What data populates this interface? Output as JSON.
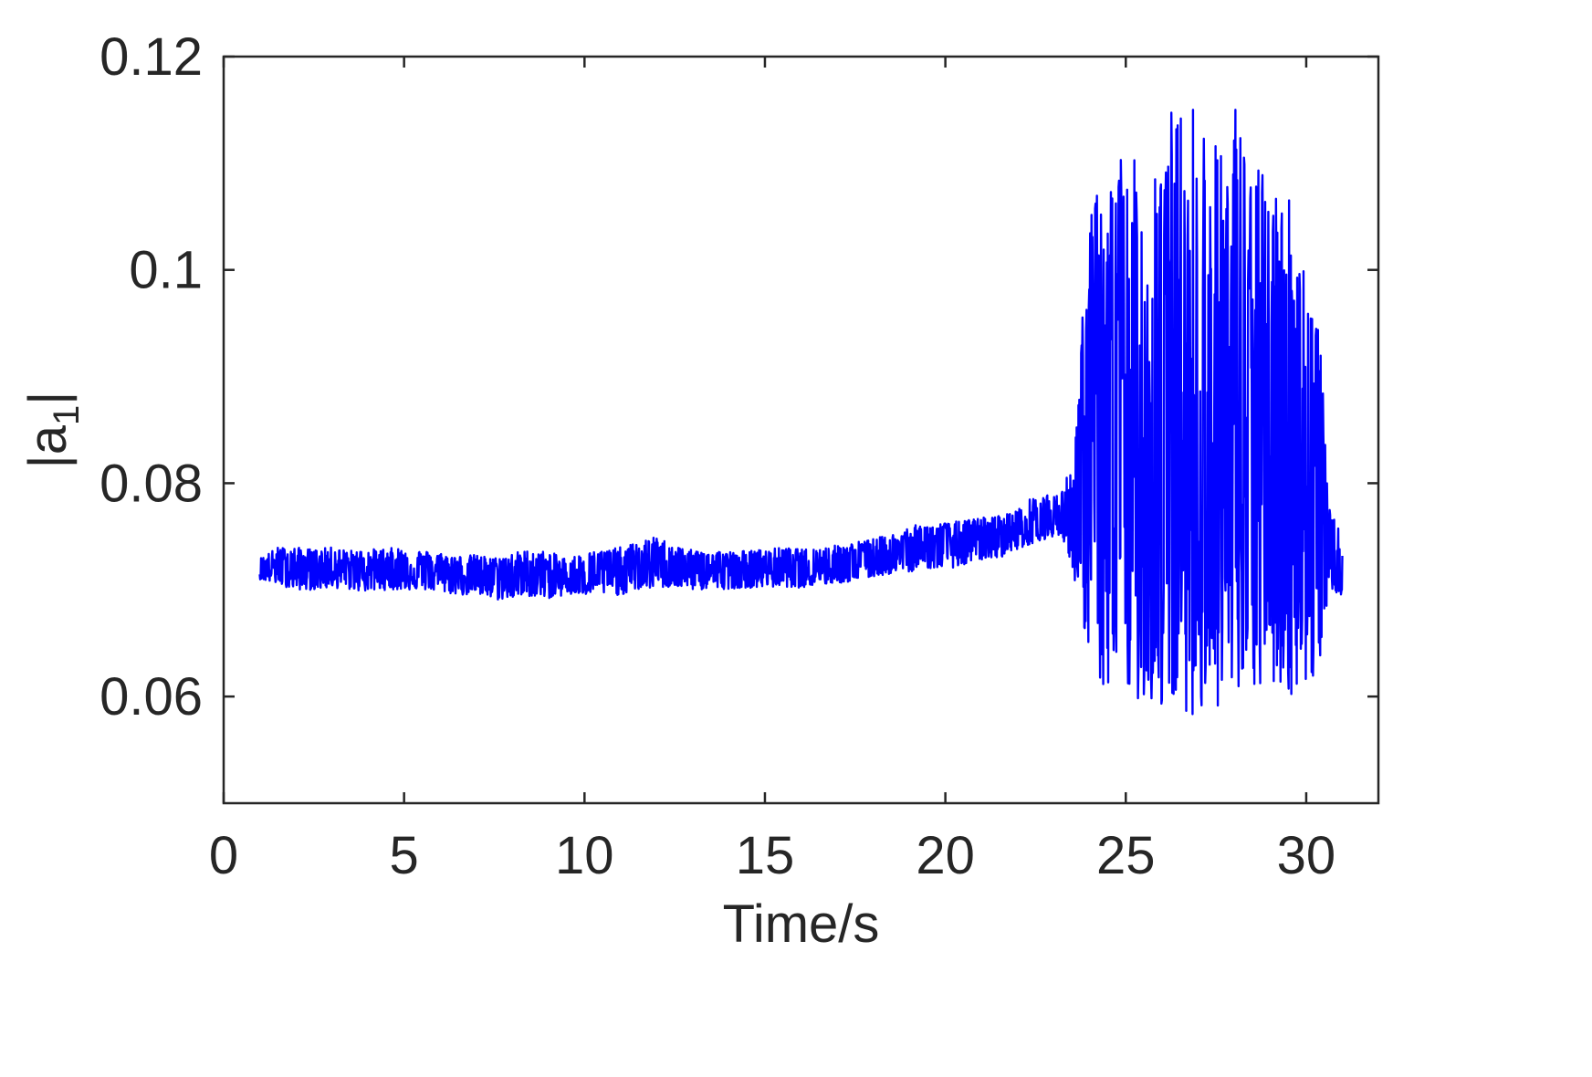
{
  "chart_data": {
    "type": "line",
    "xlabel": "Time/s",
    "ylabel_base": "|a",
    "ylabel_subscript": "1",
    "ylabel_close": "|",
    "xlim": [
      0,
      32
    ],
    "ylim": [
      0.05,
      0.12
    ],
    "xticks": [
      0,
      5,
      10,
      15,
      20,
      25,
      30
    ],
    "xtick_labels": [
      "0",
      "5",
      "10",
      "15",
      "20",
      "25",
      "30"
    ],
    "yticks": [
      0.06,
      0.08,
      0.1,
      0.12
    ],
    "ytick_labels": [
      "0.06",
      "0.08",
      "0.1",
      "0.12"
    ],
    "grid": false,
    "box": true,
    "colors": {
      "line": "#0000ff",
      "axes": "#262626",
      "background": "#ffffff"
    },
    "series": [
      {
        "x": [
          1.0,
          1.5,
          2.0,
          2.5,
          3.0,
          3.5,
          4.0,
          4.5,
          5.0,
          5.5,
          6.0,
          6.5,
          7.0,
          7.5,
          8.0,
          8.5,
          9.0,
          9.5,
          10.0,
          10.5,
          11.0,
          11.5,
          12.0,
          12.5,
          13.0,
          13.5,
          14.0,
          14.5,
          15.0,
          15.5,
          16.0,
          16.5,
          17.0,
          17.5,
          18.0,
          18.5,
          19.0,
          19.5,
          20.0,
          20.5,
          21.0,
          21.5,
          22.0,
          22.5,
          23.0,
          23.3,
          23.6,
          24.0,
          24.5,
          25.0,
          25.5,
          26.0,
          26.5,
          27.0,
          27.5,
          28.0,
          28.5,
          29.0,
          29.5,
          30.0,
          30.4,
          30.6,
          31.0
        ],
        "y": [
          0.0718,
          0.0722,
          0.0721,
          0.0719,
          0.0722,
          0.072,
          0.072,
          0.0721,
          0.0718,
          0.0719,
          0.0717,
          0.0716,
          0.0716,
          0.0714,
          0.0712,
          0.0713,
          0.0712,
          0.071,
          0.0713,
          0.0715,
          0.0716,
          0.072,
          0.0724,
          0.0722,
          0.0719,
          0.072,
          0.0719,
          0.0718,
          0.072,
          0.0721,
          0.072,
          0.0722,
          0.0724,
          0.0726,
          0.073,
          0.0733,
          0.0736,
          0.074,
          0.0742,
          0.0745,
          0.0748,
          0.075,
          0.0756,
          0.076,
          0.0765,
          0.0772,
          0.0778,
          0.08,
          0.0802,
          0.0798,
          0.0803,
          0.08,
          0.0801,
          0.0802,
          0.08,
          0.0801,
          0.08,
          0.0798,
          0.0796,
          0.079,
          0.078,
          0.075,
          0.07
        ],
        "envelope_upper": [
          0.073,
          0.074,
          0.074,
          0.0738,
          0.074,
          0.0737,
          0.0738,
          0.0739,
          0.074,
          0.0737,
          0.0735,
          0.0732,
          0.0733,
          0.073,
          0.0735,
          0.0738,
          0.0736,
          0.073,
          0.0735,
          0.0738,
          0.074,
          0.0745,
          0.075,
          0.0742,
          0.0737,
          0.0738,
          0.0736,
          0.0737,
          0.0738,
          0.074,
          0.0738,
          0.074,
          0.0742,
          0.0745,
          0.0748,
          0.0752,
          0.076,
          0.0762,
          0.0763,
          0.0765,
          0.0768,
          0.077,
          0.0775,
          0.079,
          0.0788,
          0.0795,
          0.085,
          0.1065,
          0.109,
          0.1125,
          0.108,
          0.116,
          0.115,
          0.1165,
          0.112,
          0.117,
          0.11,
          0.109,
          0.108,
          0.101,
          0.094,
          0.078,
          0.075
        ],
        "envelope_lower": [
          0.071,
          0.0705,
          0.07,
          0.07,
          0.0702,
          0.07,
          0.0698,
          0.07,
          0.07,
          0.07,
          0.0698,
          0.0695,
          0.0695,
          0.069,
          0.0692,
          0.0694,
          0.0692,
          0.0695,
          0.0695,
          0.0696,
          0.0695,
          0.07,
          0.0702,
          0.0702,
          0.07,
          0.07,
          0.0701,
          0.0702,
          0.0702,
          0.0703,
          0.0702,
          0.0704,
          0.0706,
          0.0708,
          0.0712,
          0.0715,
          0.0717,
          0.072,
          0.072,
          0.0722,
          0.0728,
          0.073,
          0.0738,
          0.0745,
          0.075,
          0.0745,
          0.07,
          0.064,
          0.059,
          0.06,
          0.0595,
          0.0585,
          0.059,
          0.058,
          0.059,
          0.0585,
          0.06,
          0.061,
          0.06,
          0.0605,
          0.062,
          0.07,
          0.0695
        ]
      }
    ]
  }
}
